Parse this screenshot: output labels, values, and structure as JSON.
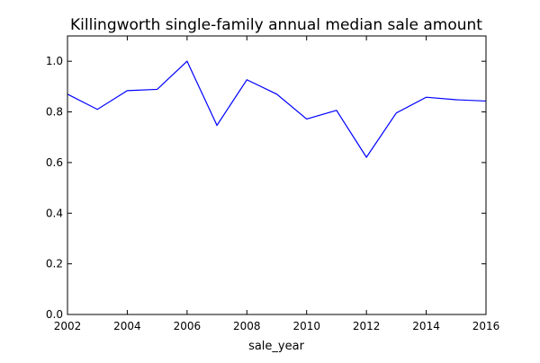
{
  "chart_data": {
    "type": "line",
    "title": "Killingworth single-family annual median sale amount",
    "xlabel": "sale_year",
    "ylabel": "",
    "xlim": [
      2002,
      2016
    ],
    "ylim": [
      0.0,
      1.1
    ],
    "xticks": [
      "2002",
      "2004",
      "2006",
      "2008",
      "2010",
      "2012",
      "2014",
      "2016"
    ],
    "yticks": [
      "0.0",
      "0.2",
      "0.4",
      "0.6",
      "0.8",
      "1.0"
    ],
    "grid": false,
    "legend": "none",
    "series": [
      {
        "color": "#0000ff",
        "x": [
          2002,
          2003,
          2004,
          2005,
          2006,
          2007,
          2008,
          2009,
          2010,
          2011,
          2012,
          2013,
          2014,
          2015,
          2016
        ],
        "y": [
          0.87,
          0.81,
          0.884,
          0.889,
          1.0,
          0.747,
          0.927,
          0.87,
          0.772,
          0.806,
          0.621,
          0.796,
          0.858,
          0.848,
          0.843
        ]
      }
    ]
  }
}
